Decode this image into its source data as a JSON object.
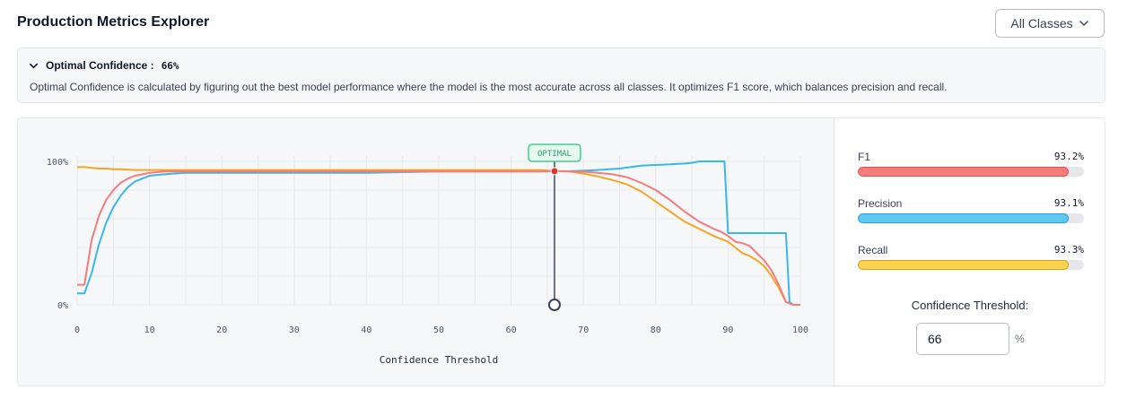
{
  "header": {
    "title": "Production Metrics Explorer",
    "class_filter": "All Classes"
  },
  "info": {
    "label": "Optimal Confidence :",
    "value": "66%",
    "description": "Optimal Confidence is calculated by figuring out the best model performance where the model is the most accurate across all classes. It optimizes F1 score, which balances precision and recall."
  },
  "metrics": [
    {
      "name": "F1",
      "value_text": "93.2%",
      "value": 93.2,
      "color": "#f47c7c",
      "border": "#e05252"
    },
    {
      "name": "Precision",
      "value_text": "93.1%",
      "value": 93.1,
      "color": "#5ec8f2",
      "border": "#2a9fd6"
    },
    {
      "name": "Recall",
      "value_text": "93.3%",
      "value": 93.3,
      "color": "#fcd34d",
      "border": "#d9a116"
    }
  ],
  "threshold": {
    "label": "Confidence Threshold:",
    "value": "66",
    "unit": "%"
  },
  "colors": {
    "f1": "#f47c7c",
    "precision": "#3ab7ea",
    "recall": "#f5a524",
    "optimal": "#3fcf8e",
    "marker": "#e03131"
  },
  "chart_data": {
    "type": "line",
    "xlabel": "Confidence Threshold",
    "ylabel": "",
    "xlim": [
      0,
      100
    ],
    "ylim": [
      0,
      100
    ],
    "x_ticks": [
      "0",
      "10",
      "20",
      "30",
      "40",
      "50",
      "60",
      "70",
      "80",
      "90",
      "100"
    ],
    "y_ticks": [
      "0%",
      "100%"
    ],
    "grid": true,
    "annotation": {
      "label": "OPTIMAL",
      "x": 66,
      "y": 93.2
    },
    "series": [
      {
        "key": "precision",
        "x": [
          0,
          1,
          2,
          3,
          4,
          5,
          6,
          7,
          8,
          9,
          10,
          12,
          15,
          20,
          30,
          40,
          50,
          60,
          62,
          64,
          66,
          68,
          70,
          72,
          75,
          78,
          80,
          82,
          84,
          85,
          86,
          87,
          88,
          89,
          89.5,
          90,
          91,
          92,
          93,
          94,
          95,
          96,
          97,
          98,
          98.5,
          99,
          100
        ],
        "y": [
          8,
          8,
          22,
          42,
          57,
          68,
          76,
          82,
          86,
          88,
          90,
          91,
          92,
          92,
          92,
          92,
          93,
          93,
          93,
          93,
          93.1,
          93.2,
          93.5,
          94,
          95,
          97,
          97.5,
          98,
          98.5,
          99,
          100,
          100,
          100,
          100,
          100,
          50,
          50,
          50,
          50,
          50,
          50,
          50,
          50,
          50,
          2,
          0,
          0
        ]
      },
      {
        "key": "f1",
        "x": [
          0,
          1,
          2,
          3,
          4,
          5,
          6,
          7,
          8,
          9,
          10,
          12,
          15,
          20,
          30,
          40,
          50,
          60,
          64,
          66,
          68,
          70,
          72,
          74,
          76,
          78,
          80,
          82,
          84,
          86,
          88,
          89,
          90,
          91,
          92,
          93,
          94,
          95,
          96,
          97,
          98,
          99,
          100
        ],
        "y": [
          14,
          14,
          45,
          62,
          73,
          80,
          85,
          88,
          90,
          91,
          92,
          93,
          93,
          93,
          93,
          93,
          93,
          93,
          93,
          93.2,
          93,
          92.8,
          92,
          91,
          89,
          85,
          80,
          73,
          65,
          58,
          53,
          51,
          48,
          44,
          43,
          41,
          36,
          31,
          24,
          14,
          2,
          0,
          0
        ]
      },
      {
        "key": "recall",
        "x": [
          0,
          1,
          2,
          3,
          4,
          5,
          6,
          8,
          10,
          12,
          15,
          20,
          30,
          40,
          50,
          60,
          64,
          66,
          68,
          70,
          72,
          74,
          76,
          78,
          80,
          82,
          84,
          86,
          88,
          89,
          90,
          91,
          92,
          93,
          94,
          95,
          96,
          97,
          98,
          99,
          100
        ],
        "y": [
          96,
          96,
          95.5,
          95,
          95,
          94.5,
          94.5,
          94,
          94,
          94,
          94,
          94,
          94,
          94,
          94,
          94,
          94,
          93.3,
          93,
          91.5,
          89.5,
          87,
          84,
          79,
          72,
          65,
          58,
          53,
          48,
          46,
          44,
          40,
          36,
          34,
          31,
          27,
          20,
          12,
          2,
          0,
          0
        ]
      }
    ]
  }
}
